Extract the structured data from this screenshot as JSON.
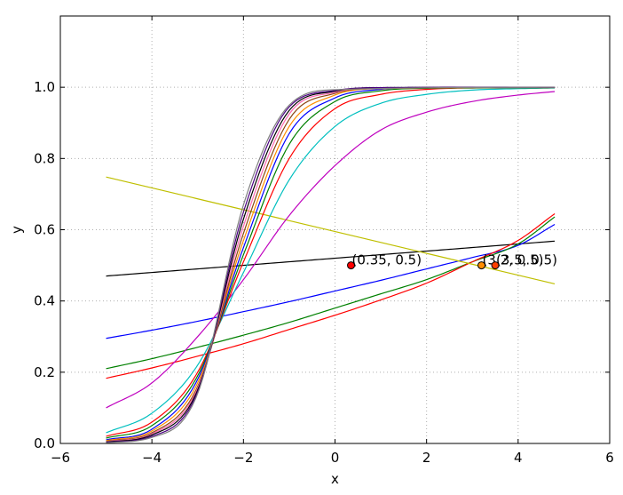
{
  "chart_data": {
    "type": "line",
    "title": "",
    "xlabel": "x",
    "ylabel": "y",
    "xlim": [
      -6,
      6
    ],
    "ylim": [
      0,
      1.2
    ],
    "xticks": [
      "−6",
      "−4",
      "−2",
      "0",
      "2",
      "4",
      "6"
    ],
    "yticks": [
      "0.0",
      "0.2",
      "0.4",
      "0.6",
      "0.8",
      "1.0"
    ],
    "grid": true,
    "x_range": [
      -5,
      4.8
    ],
    "series": [
      {
        "color": "#000000",
        "values": [
          [
            -5,
            0.47
          ],
          [
            4.8,
            0.568
          ]
        ]
      },
      {
        "color": "#0000ff",
        "values": [
          [
            -5,
            0.295
          ],
          [
            -4,
            0.318
          ],
          [
            -3,
            0.343
          ],
          [
            -2,
            0.37
          ],
          [
            -1,
            0.398
          ],
          [
            0,
            0.428
          ],
          [
            1,
            0.458
          ],
          [
            2,
            0.49
          ],
          [
            3,
            0.522
          ],
          [
            4,
            0.556
          ],
          [
            4.8,
            0.615
          ]
        ]
      },
      {
        "color": "#008000",
        "values": [
          [
            -5,
            0.21
          ],
          [
            -4,
            0.238
          ],
          [
            -3,
            0.27
          ],
          [
            -2,
            0.304
          ],
          [
            -1,
            0.34
          ],
          [
            0,
            0.38
          ],
          [
            1,
            0.42
          ],
          [
            2,
            0.46
          ],
          [
            3,
            0.51
          ],
          [
            4,
            0.56
          ],
          [
            4.8,
            0.636
          ]
        ]
      },
      {
        "color": "#ff0000",
        "values": [
          [
            -5,
            0.183
          ],
          [
            -4,
            0.212
          ],
          [
            -3,
            0.245
          ],
          [
            -2,
            0.28
          ],
          [
            -1,
            0.32
          ],
          [
            0,
            0.36
          ],
          [
            1,
            0.403
          ],
          [
            2,
            0.45
          ],
          [
            3,
            0.51
          ],
          [
            4,
            0.57
          ],
          [
            4.8,
            0.645
          ]
        ]
      },
      {
        "color": "#bfbf00",
        "values": [
          [
            -5,
            0.748
          ],
          [
            4.8,
            0.448
          ]
        ]
      },
      {
        "color": "#bf00bf",
        "values": [
          [
            -5,
            0.1
          ],
          [
            -4,
            0.17
          ],
          [
            -3,
            0.3
          ],
          [
            -2,
            0.46
          ],
          [
            -1,
            0.64
          ],
          [
            0,
            0.78
          ],
          [
            1,
            0.88
          ],
          [
            2,
            0.93
          ],
          [
            3,
            0.96
          ],
          [
            4,
            0.978
          ],
          [
            4.8,
            0.988
          ]
        ]
      },
      {
        "color": "#00bfbf",
        "values": [
          [
            -5,
            0.03
          ],
          [
            -4,
            0.085
          ],
          [
            -3,
            0.22
          ],
          [
            -2,
            0.48
          ],
          [
            -1,
            0.74
          ],
          [
            0,
            0.89
          ],
          [
            1,
            0.955
          ],
          [
            2,
            0.98
          ],
          [
            3,
            0.992
          ],
          [
            4,
            0.996
          ],
          [
            4.8,
            0.998
          ]
        ]
      },
      {
        "color": "#ff0000",
        "values": [
          [
            -5,
            0.02
          ],
          [
            -4,
            0.06
          ],
          [
            -3,
            0.2
          ],
          [
            -2,
            0.51
          ],
          [
            -1,
            0.8
          ],
          [
            0,
            0.94
          ],
          [
            1,
            0.98
          ],
          [
            2,
            0.994
          ],
          [
            3,
            0.998
          ],
          [
            4.8,
            0.999
          ]
        ]
      },
      {
        "color": "#008000",
        "values": [
          [
            -5,
            0.015
          ],
          [
            -4,
            0.05
          ],
          [
            -3,
            0.19
          ],
          [
            -2,
            0.53
          ],
          [
            -1,
            0.84
          ],
          [
            0,
            0.96
          ],
          [
            1,
            0.99
          ],
          [
            2,
            0.997
          ],
          [
            4.8,
            0.999
          ]
        ]
      },
      {
        "color": "#0000ff",
        "values": [
          [
            -5,
            0.01
          ],
          [
            -4,
            0.04
          ],
          [
            -3,
            0.18
          ],
          [
            -2,
            0.55
          ],
          [
            -1,
            0.87
          ],
          [
            0,
            0.97
          ],
          [
            1,
            0.994
          ],
          [
            2,
            0.999
          ],
          [
            4.8,
            1.0
          ]
        ]
      },
      {
        "color": "#ff8c00",
        "values": [
          [
            -5,
            0.008
          ],
          [
            -4,
            0.035
          ],
          [
            -3,
            0.17
          ],
          [
            -2,
            0.57
          ],
          [
            -1,
            0.89
          ],
          [
            0,
            0.978
          ],
          [
            1,
            0.996
          ],
          [
            4.8,
            1.0
          ]
        ]
      },
      {
        "color": "#8b4513",
        "values": [
          [
            -5,
            0.006
          ],
          [
            -4,
            0.03
          ],
          [
            -3,
            0.16
          ],
          [
            -2,
            0.59
          ],
          [
            -1,
            0.91
          ],
          [
            0,
            0.983
          ],
          [
            1,
            0.997
          ],
          [
            4.8,
            1.0
          ]
        ]
      },
      {
        "color": "#ff69b4",
        "values": [
          [
            -5,
            0.005
          ],
          [
            -4,
            0.027
          ],
          [
            -3,
            0.155
          ],
          [
            -2,
            0.61
          ],
          [
            -1,
            0.925
          ],
          [
            0,
            0.986
          ],
          [
            1,
            0.998
          ],
          [
            4.8,
            1.0
          ]
        ]
      },
      {
        "color": "#000000",
        "values": [
          [
            -5,
            0.004
          ],
          [
            -4,
            0.024
          ],
          [
            -3,
            0.15
          ],
          [
            -2,
            0.63
          ],
          [
            -1,
            0.935
          ],
          [
            0,
            0.989
          ],
          [
            1,
            0.999
          ],
          [
            4.8,
            1.0
          ]
        ]
      },
      {
        "color": "#4b0082",
        "values": [
          [
            -5,
            0.003
          ],
          [
            -4,
            0.02
          ],
          [
            -3,
            0.145
          ],
          [
            -2,
            0.65
          ],
          [
            -1,
            0.945
          ],
          [
            0,
            0.991
          ],
          [
            1,
            0.999
          ],
          [
            4.8,
            1.0
          ]
        ]
      },
      {
        "color": "#808080",
        "values": [
          [
            -5,
            0.002
          ],
          [
            -4,
            0.017
          ],
          [
            -3,
            0.14
          ],
          [
            -2,
            0.67
          ],
          [
            -1,
            0.95
          ],
          [
            0,
            0.993
          ],
          [
            4.8,
            1.0
          ]
        ]
      }
    ],
    "points": [
      {
        "x": 0.35,
        "y": 0.5,
        "label": "(0.35, 0.5)",
        "color": "#ff0000"
      },
      {
        "x": 3.2,
        "y": 0.5,
        "label": "(3.2, 0.5)",
        "color": "#ff8c00"
      },
      {
        "x": 3.5,
        "y": 0.5,
        "label": "(3.5, 0.5)",
        "color": "#ff4000"
      }
    ]
  }
}
